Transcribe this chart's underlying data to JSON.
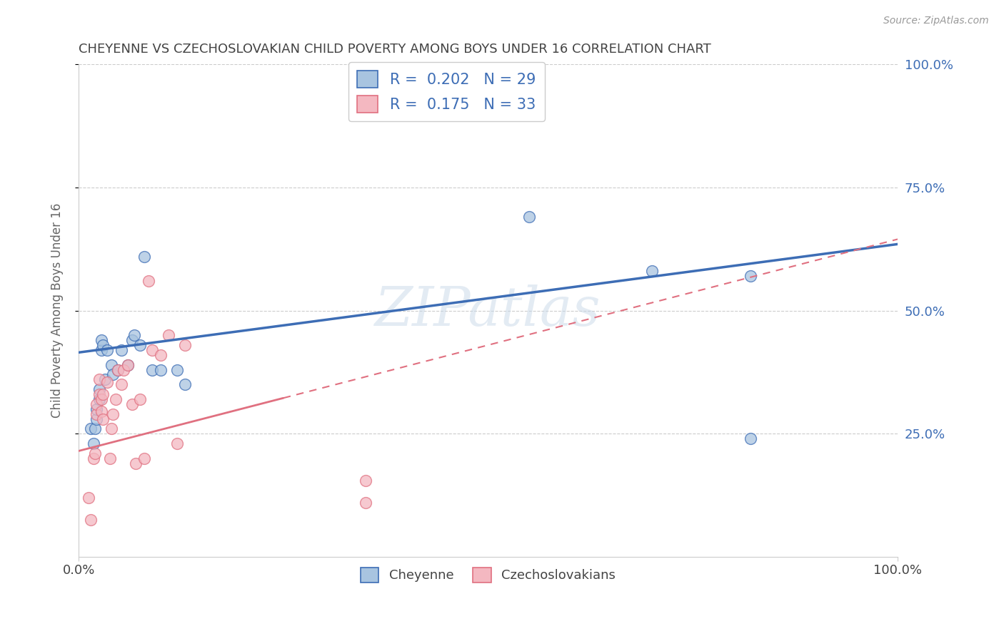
{
  "title": "CHEYENNE VS CZECHOSLOVAKIAN CHILD POVERTY AMONG BOYS UNDER 16 CORRELATION CHART",
  "source": "Source: ZipAtlas.com",
  "ylabel": "Child Poverty Among Boys Under 16",
  "cheyenne_color": "#a8c4e0",
  "cheyenne_line_color": "#3d6db5",
  "czechoslovakian_color": "#f4b8c1",
  "czechoslovakian_line_color": "#e07080",
  "cheyenne_R": "0.202",
  "cheyenne_N": "29",
  "czechoslovakian_R": "0.175",
  "czechoslovakian_N": "33",
  "watermark": "ZIPatlas",
  "xlim": [
    0,
    1
  ],
  "ylim": [
    0,
    1
  ],
  "cheyenne_x": [
    0.015,
    0.018,
    0.02,
    0.022,
    0.022,
    0.025,
    0.025,
    0.028,
    0.028,
    0.03,
    0.032,
    0.035,
    0.04,
    0.042,
    0.048,
    0.052,
    0.06,
    0.065,
    0.068,
    0.075,
    0.08,
    0.09,
    0.1,
    0.12,
    0.13,
    0.55,
    0.7,
    0.82,
    0.82
  ],
  "cheyenne_y": [
    0.26,
    0.23,
    0.26,
    0.28,
    0.3,
    0.32,
    0.34,
    0.42,
    0.44,
    0.43,
    0.36,
    0.42,
    0.39,
    0.37,
    0.38,
    0.42,
    0.39,
    0.44,
    0.45,
    0.43,
    0.61,
    0.38,
    0.38,
    0.38,
    0.35,
    0.69,
    0.58,
    0.57,
    0.24
  ],
  "czechoslovakian_x": [
    0.012,
    0.015,
    0.018,
    0.02,
    0.022,
    0.022,
    0.025,
    0.025,
    0.028,
    0.028,
    0.03,
    0.03,
    0.035,
    0.038,
    0.04,
    0.042,
    0.045,
    0.048,
    0.052,
    0.055,
    0.06,
    0.065,
    0.07,
    0.075,
    0.08,
    0.085,
    0.09,
    0.1,
    0.11,
    0.12,
    0.13,
    0.35,
    0.35
  ],
  "czechoslovakian_y": [
    0.12,
    0.075,
    0.2,
    0.21,
    0.29,
    0.31,
    0.33,
    0.36,
    0.295,
    0.32,
    0.33,
    0.28,
    0.355,
    0.2,
    0.26,
    0.29,
    0.32,
    0.38,
    0.35,
    0.38,
    0.39,
    0.31,
    0.19,
    0.32,
    0.2,
    0.56,
    0.42,
    0.41,
    0.45,
    0.23,
    0.43,
    0.11,
    0.155
  ],
  "ytick_positions": [
    0.25,
    0.5,
    0.75,
    1.0
  ],
  "ytick_labels_right": [
    "25.0%",
    "50.0%",
    "75.0%",
    "100.0%"
  ],
  "xtick_positions": [
    0.0,
    1.0
  ],
  "xtick_labels": [
    "0.0%",
    "100.0%"
  ],
  "grid_color": "#cccccc",
  "background_color": "#ffffff",
  "title_color": "#444444",
  "axis_label_color": "#666666",
  "right_ytick_color": "#3d6db5",
  "legend_blue_color": "#3d6db5",
  "blue_line_start_y": 0.415,
  "blue_line_end_y": 0.635,
  "pink_line_start_y": 0.215,
  "pink_line_end_y": 0.645
}
